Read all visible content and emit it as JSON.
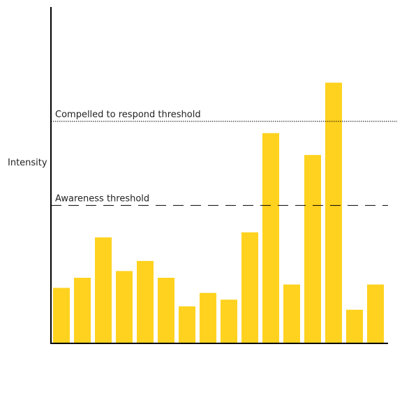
{
  "chart_data": {
    "type": "bar",
    "title": "",
    "xlabel": "",
    "ylabel": "Intensity",
    "ylim": [
      0,
      100
    ],
    "bar_color": "#ffd21f",
    "values": [
      16.5,
      19.5,
      31.5,
      21.5,
      24.5,
      19.5,
      11,
      15,
      13,
      33,
      62.5,
      17.5,
      56,
      77.5,
      10,
      17.5
    ],
    "thresholds": [
      {
        "label": "Compelled to respond threshold",
        "value": 66,
        "style": "dotted"
      },
      {
        "label": "Awareness threshold",
        "value": 41,
        "style": "dashed"
      }
    ]
  }
}
